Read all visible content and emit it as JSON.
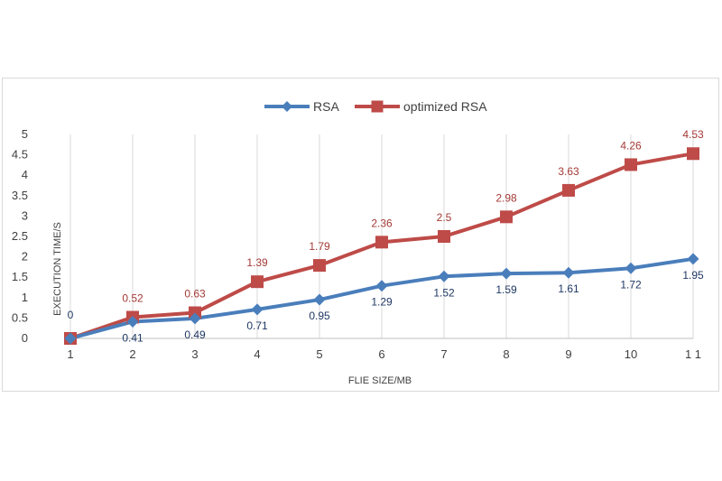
{
  "chart_data": {
    "type": "line",
    "title": "",
    "xlabel": "FLIE SIZE/MB",
    "ylabel": "EXECUTION TIME/S",
    "categories": [
      "1",
      "2",
      "3",
      "4",
      "5",
      "6",
      "7",
      "8",
      "9",
      "10",
      "1 1"
    ],
    "ylim": [
      0,
      5
    ],
    "yticks": [
      "0",
      "0.5",
      "1",
      "1.5",
      "2",
      "2.5",
      "3",
      "3.5",
      "4",
      "4.5",
      "5"
    ],
    "grid": "vertical",
    "legend_position": "top",
    "series": [
      {
        "name": "RSA",
        "color": "#4a7ebb",
        "marker": "diamond",
        "values": [
          0,
          0.41,
          0.49,
          0.71,
          0.95,
          1.29,
          1.52,
          1.59,
          1.61,
          1.72,
          1.95
        ],
        "labels": [
          "0",
          "0.41",
          "0.49",
          "0.71",
          "0.95",
          "1.29",
          "1.52",
          "1.59",
          "1.61",
          "1.72",
          "1.95"
        ],
        "label_color": "#1f3864"
      },
      {
        "name": "optimized RSA",
        "color": "#be4b48",
        "marker": "square",
        "values": [
          0,
          0.52,
          0.63,
          1.39,
          1.79,
          2.36,
          2.5,
          2.98,
          3.63,
          4.26,
          4.53
        ],
        "labels": [
          "",
          "0.52",
          "0.63",
          "1.39",
          "1.79",
          "2.36",
          "2.5",
          "2.98",
          "3.63",
          "4.26",
          "4.53"
        ],
        "label_color": "#a33a36"
      }
    ]
  }
}
